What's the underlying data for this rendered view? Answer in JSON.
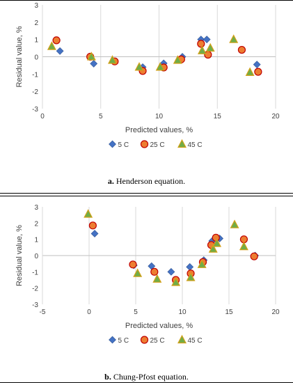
{
  "chart_data": [
    {
      "type": "scatter",
      "xlabel": "Predicted values, %",
      "ylabel": "Residual value, %",
      "xlim": [
        0,
        20
      ],
      "ylim": [
        -3,
        3
      ],
      "xticks": [
        0,
        5,
        10,
        15,
        20
      ],
      "yticks": [
        -3,
        -2,
        -1,
        0,
        1,
        2,
        3
      ],
      "grid": "vertical",
      "legend_position": "bottom",
      "series": [
        {
          "name": "5 C",
          "color": "#4472c4",
          "marker": "diamond",
          "x": [
            1.5,
            4.4,
            8.6,
            10.4,
            12.0,
            13.6,
            14.1,
            18.4
          ],
          "y": [
            0.33,
            -0.4,
            -0.6,
            -0.38,
            0.0,
            1.0,
            1.0,
            -0.45
          ]
        },
        {
          "name": "25 C",
          "color": "#ed7d31",
          "marker": "circle",
          "x": [
            1.2,
            4.1,
            6.2,
            8.6,
            10.4,
            11.9,
            13.6,
            14.2,
            17.1,
            18.5
          ],
          "y": [
            0.95,
            0.0,
            -0.27,
            -0.82,
            -0.62,
            -0.15,
            0.75,
            0.12,
            0.4,
            -0.87
          ]
        },
        {
          "name": "45 C",
          "color": "#70ad47",
          "marker": "triangle",
          "x": [
            0.8,
            4.2,
            6.0,
            8.3,
            10.1,
            11.6,
            13.7,
            14.4,
            16.4,
            17.8
          ],
          "y": [
            0.6,
            0.0,
            -0.2,
            -0.6,
            -0.6,
            -0.2,
            0.35,
            0.5,
            1.0,
            -0.9
          ]
        }
      ]
    },
    {
      "type": "scatter",
      "xlabel": "Predicted values, %",
      "ylabel": "Residual value, %",
      "xlim": [
        -5,
        20
      ],
      "ylim": [
        -3,
        3
      ],
      "xticks": [
        -5,
        0,
        5,
        10,
        15,
        20
      ],
      "yticks": [
        -3,
        -2,
        -1,
        0,
        1,
        2,
        3
      ],
      "grid": "vertical",
      "legend_position": "bottom",
      "series": [
        {
          "name": "5 C",
          "color": "#4472c4",
          "marker": "diamond",
          "x": [
            0.6,
            4.8,
            6.7,
            8.8,
            10.8,
            12.3,
            13.2,
            14.0,
            17.8
          ],
          "y": [
            1.35,
            -0.6,
            -0.65,
            -1.0,
            -0.7,
            -0.28,
            0.9,
            1.05,
            0.0
          ]
        },
        {
          "name": "25 C",
          "color": "#ed7d31",
          "marker": "circle",
          "x": [
            0.4,
            4.7,
            7.0,
            9.3,
            10.9,
            12.2,
            13.1,
            13.6,
            16.6,
            17.7
          ],
          "y": [
            1.85,
            -0.55,
            -1.0,
            -1.5,
            -1.1,
            -0.4,
            0.65,
            1.1,
            1.0,
            -0.05
          ]
        },
        {
          "name": "45 C",
          "color": "#70ad47",
          "marker": "triangle",
          "x": [
            -0.1,
            5.2,
            7.3,
            9.3,
            10.9,
            12.1,
            13.3,
            13.7,
            15.6,
            16.6
          ],
          "y": [
            2.55,
            -1.1,
            -1.45,
            -1.65,
            -1.35,
            -0.55,
            0.4,
            0.75,
            1.9,
            0.55
          ]
        }
      ]
    }
  ],
  "captions": [
    {
      "label": "a.",
      "text": "Henderson equation."
    },
    {
      "label": "b.",
      "text": "Chung-Pfost equation."
    }
  ]
}
